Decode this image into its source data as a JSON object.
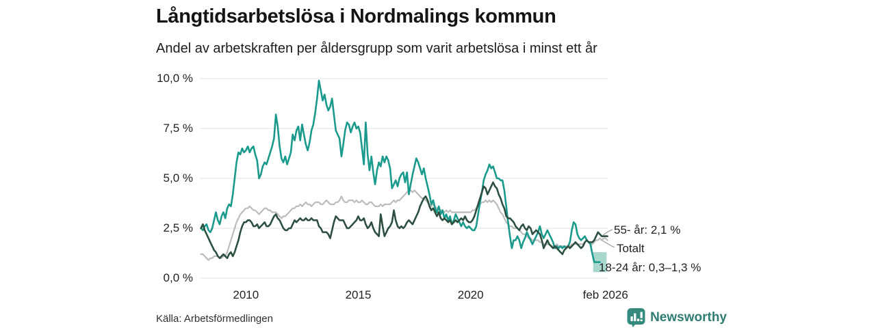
{
  "header": {
    "title": "Långtidsarbetslösa i Nordmalings kommun",
    "subtitle": "Andel av arbetskraften per åldersgrupp som varit arbetslösa i minst ett år"
  },
  "footer": {
    "source": "Källa: Arbetsförmedlingen",
    "brand": "Newsworthy",
    "brand_icon": "bar-chart-speech-bubble-icon"
  },
  "colors": {
    "youth": "#1a9a8c",
    "senior": "#2d4f40",
    "total": "#bcbcbc",
    "band": "#a8d7cd",
    "grid": "#e0e0e0",
    "leader": "#999999",
    "brand": "#2f7d72",
    "brand_icon_bg": "#358a7d"
  },
  "chart_data": {
    "type": "line",
    "title": "Långtidsarbetslösa i Nordmalings kommun",
    "subtitle": "Andel av arbetskraften per åldersgrupp som varit arbetslösa i minst ett år",
    "xlabel": "",
    "ylabel": "",
    "grid": "horizontal",
    "x_unit": "year (monthly resolution)",
    "x_start": 2008.0,
    "x_step": 0.08333333,
    "x_range": [
      2007.95,
      2026.1
    ],
    "y_range": [
      0,
      10
    ],
    "y_ticks": [
      [
        0,
        "0,0 %"
      ],
      [
        2.5,
        "2,5 %"
      ],
      [
        5,
        "5,0 %"
      ],
      [
        7.5,
        "7,5 %"
      ],
      [
        10,
        "10,0 %"
      ]
    ],
    "x_ticks": [
      [
        2010,
        "2010"
      ],
      [
        2015,
        "2015"
      ],
      [
        2020,
        "2020"
      ],
      [
        2026.0,
        "feb 2026"
      ]
    ],
    "series": [
      {
        "name": "Totalt",
        "color_key": "total",
        "width": 2.2,
        "values": [
          1.2,
          1.2,
          1.1,
          1.0,
          0.9,
          1.0,
          1.0,
          1.1,
          1.1,
          1.1,
          1.0,
          1.0,
          1.1,
          1.1,
          1.3,
          1.6,
          1.9,
          2.2,
          2.5,
          2.8,
          3.0,
          3.2,
          3.3,
          3.4,
          3.5,
          3.5,
          3.6,
          3.5,
          3.4,
          3.4,
          3.3,
          3.2,
          3.3,
          3.4,
          3.5,
          3.5,
          3.4,
          3.4,
          3.3,
          3.3,
          3.3,
          3.2,
          3.1,
          3.0,
          3.1,
          3.1,
          3.2,
          3.3,
          3.4,
          3.5,
          3.5,
          3.6,
          3.6,
          3.7,
          3.6,
          3.7,
          3.8,
          3.7,
          3.7,
          3.6,
          3.7,
          3.8,
          3.8,
          3.8,
          3.7,
          3.7,
          3.8,
          3.9,
          3.8,
          3.7,
          3.7,
          3.7,
          3.8,
          3.8,
          3.9,
          4.1,
          3.9,
          3.8,
          3.8,
          3.9,
          3.9,
          3.9,
          3.8,
          3.9,
          3.8,
          3.8,
          3.9,
          3.8,
          3.7,
          3.7,
          3.8,
          3.8,
          3.7,
          3.6,
          3.6,
          3.6,
          3.7,
          3.6,
          3.7,
          3.7,
          3.7,
          3.7,
          3.8,
          3.9,
          3.8,
          3.9,
          3.9,
          4.0,
          4.1,
          4.2,
          4.3,
          4.4,
          4.4,
          4.3,
          4.4,
          4.3,
          4.2,
          4.1,
          4.0,
          4.0,
          3.9,
          3.8,
          3.7,
          3.6,
          3.7,
          3.6,
          3.5,
          3.5,
          3.4,
          3.4,
          3.3,
          3.4,
          3.3,
          3.4,
          3.3,
          3.3,
          3.3,
          3.3,
          3.3,
          3.3,
          3.3,
          3.3,
          3.3,
          3.3,
          3.3,
          3.4,
          3.4,
          3.5,
          3.6,
          3.7,
          3.8,
          3.8,
          3.9,
          3.8,
          3.9,
          3.8,
          3.9,
          3.8,
          3.7,
          3.5,
          3.3,
          3.2,
          3.0,
          2.8,
          2.7,
          2.6,
          2.6,
          2.5,
          2.5,
          2.5,
          2.4,
          2.3,
          2.2,
          2.2,
          2.1,
          2.0,
          2.0,
          1.9,
          1.9,
          1.9,
          1.9,
          1.8,
          1.8,
          1.7,
          1.7,
          1.7,
          1.7,
          1.6,
          1.6,
          1.6,
          1.7,
          1.6,
          1.6,
          1.6,
          1.6,
          1.6,
          1.6,
          1.6,
          1.7,
          1.7,
          1.7,
          1.7,
          1.7,
          1.7,
          1.7,
          1.8,
          1.9,
          1.8,
          1.7,
          1.7,
          1.8,
          1.9,
          1.9,
          2.0,
          1.9,
          2.0,
          2.0,
          1.9
        ]
      },
      {
        "name": "18-24 år",
        "color_key": "youth",
        "width": 2.6,
        "values": [
          2.5,
          2.4,
          2.6,
          2.7,
          2.4,
          2.3,
          2.5,
          2.9,
          3.3,
          2.9,
          2.7,
          3.1,
          3.3,
          3.0,
          3.5,
          3.7,
          3.6,
          4.2,
          5.0,
          5.8,
          6.3,
          6.2,
          6.5,
          6.3,
          6.4,
          6.6,
          6.3,
          6.5,
          6.6,
          6.2,
          5.9,
          5.0,
          5.2,
          5.6,
          5.8,
          5.7,
          6.0,
          6.3,
          6.6,
          7.0,
          8.2,
          7.6,
          6.6,
          6.0,
          5.8,
          6.1,
          5.7,
          6.0,
          6.3,
          7.2,
          6.9,
          7.4,
          7.6,
          6.9,
          7.7,
          7.2,
          6.7,
          6.4,
          6.8,
          7.4,
          7.7,
          8.3,
          9.0,
          9.9,
          9.4,
          8.9,
          9.2,
          8.7,
          8.4,
          8.6,
          9.0,
          8.2,
          7.4,
          7.2,
          7.0,
          6.1,
          6.7,
          7.4,
          7.8,
          7.7,
          7.3,
          7.6,
          7.8,
          7.5,
          7.6,
          7.3,
          6.5,
          5.7,
          7.8,
          6.2,
          5.4,
          6.1,
          5.3,
          4.7,
          5.4,
          5.8,
          5.6,
          6.1,
          5.8,
          6.1,
          5.9,
          5.5,
          4.5,
          4.7,
          4.9,
          4.6,
          5.0,
          5.2,
          5.3,
          4.8,
          5.3,
          4.2,
          4.7,
          5.2,
          5.6,
          6.0,
          5.8,
          5.5,
          5.2,
          5.5,
          5.0,
          4.6,
          4.2,
          3.7,
          3.9,
          3.5,
          3.3,
          3.6,
          3.2,
          3.4,
          3.0,
          3.2,
          2.9,
          3.1,
          2.7,
          2.9,
          3.2,
          3.0,
          2.8,
          2.6,
          2.8,
          2.6,
          2.5,
          2.6,
          2.5,
          2.4,
          2.4,
          2.6,
          3.2,
          3.8,
          4.3,
          4.9,
          5.2,
          5.4,
          5.7,
          5.5,
          5.6,
          5.3,
          5.0,
          5.0,
          4.9,
          4.9,
          4.4,
          3.6,
          2.8,
          2.1,
          1.5,
          1.9,
          1.9,
          2.1,
          1.9,
          1.5,
          1.8,
          2.0,
          2.3,
          2.1,
          1.9,
          1.7,
          1.9,
          2.1,
          2.3,
          2.6,
          2.2,
          2.0,
          2.2,
          2.4,
          2.2,
          2.0,
          1.8,
          1.5,
          1.6,
          1.5,
          1.6,
          1.5,
          1.6,
          1.5,
          1.6,
          1.8,
          2.4,
          2.8,
          2.7,
          2.2,
          2.0,
          1.9,
          2.0,
          2.1,
          1.9,
          1.8,
          1.7,
          1.2,
          0.8,
          0.8,
          0.8,
          0.8
        ]
      },
      {
        "name": "55- år",
        "color_key": "senior",
        "width": 2.6,
        "values": [
          2.5,
          2.7,
          2.4,
          2.2,
          2.0,
          1.8,
          1.6,
          1.4,
          1.3,
          1.1,
          1.0,
          1.1,
          1.2,
          1.1,
          1.0,
          1.2,
          1.3,
          1.1,
          1.3,
          1.6,
          1.9,
          2.3,
          2.6,
          2.8,
          2.8,
          2.9,
          2.9,
          2.8,
          2.6,
          2.6,
          2.7,
          2.5,
          2.6,
          2.7,
          2.8,
          2.6,
          2.6,
          2.7,
          2.9,
          3.1,
          3.2,
          3.0,
          2.9,
          2.7,
          2.5,
          2.4,
          2.4,
          2.5,
          2.5,
          2.7,
          2.9,
          2.8,
          2.9,
          3.0,
          2.9,
          2.9,
          3.0,
          2.9,
          2.9,
          3.0,
          2.9,
          2.9,
          2.9,
          2.6,
          2.5,
          2.3,
          2.3,
          2.3,
          2.2,
          2.0,
          2.4,
          2.8,
          3.1,
          3.0,
          2.9,
          2.9,
          2.9,
          2.7,
          2.5,
          2.5,
          2.6,
          2.7,
          2.8,
          2.9,
          3.1,
          2.9,
          2.9,
          3.0,
          2.7,
          2.5,
          2.6,
          2.8,
          2.5,
          2.3,
          2.2,
          2.1,
          3.2,
          2.6,
          2.1,
          2.3,
          2.5,
          2.6,
          2.8,
          3.4,
          2.9,
          2.6,
          2.5,
          2.6,
          2.5,
          2.6,
          2.8,
          2.9,
          2.8,
          2.7,
          2.9,
          3.1,
          3.3,
          3.6,
          3.8,
          4.0,
          4.1,
          3.9,
          3.6,
          3.4,
          3.5,
          3.3,
          3.1,
          3.3,
          3.0,
          2.9,
          3.0,
          2.9,
          2.8,
          2.9,
          2.7,
          2.8,
          2.9,
          2.8,
          2.9,
          3.0,
          2.9,
          3.1,
          2.9,
          2.8,
          2.8,
          2.9,
          3.1,
          3.4,
          3.7,
          4.0,
          4.3,
          4.6,
          4.5,
          4.2,
          4.4,
          4.6,
          4.8,
          4.6,
          4.5,
          4.2,
          4.0,
          3.7,
          3.5,
          3.1,
          3.0,
          3.0,
          2.9,
          2.8,
          2.6,
          2.5,
          2.4,
          2.6,
          2.7,
          2.5,
          2.4,
          2.6,
          2.5,
          2.2,
          2.3,
          2.4,
          2.3,
          2.2,
          1.9,
          1.5,
          1.7,
          1.9,
          1.7,
          1.6,
          1.5,
          1.6,
          1.5,
          1.4,
          1.3,
          1.2,
          1.4,
          1.5,
          1.6,
          1.5,
          1.6,
          1.7,
          1.8,
          1.7,
          1.6,
          1.5,
          1.6,
          1.8,
          1.9,
          1.8,
          1.8,
          1.8,
          1.9,
          2.1,
          2.3,
          2.2,
          2.1,
          2.1,
          2.1,
          2.1
        ]
      }
    ],
    "uncertainty_band": {
      "series": "18-24 år",
      "x0": 2025.45,
      "x1": 2026.05,
      "y0": 0.3,
      "y1": 1.3
    },
    "annotations": [
      {
        "id": "senior",
        "text": "55- år: 2,1 %",
        "leader": true
      },
      {
        "id": "total",
        "text": "Totalt",
        "leader": true
      },
      {
        "id": "youth",
        "text": "18-24 år: 0,3–1,3 %",
        "leader": false
      }
    ]
  }
}
